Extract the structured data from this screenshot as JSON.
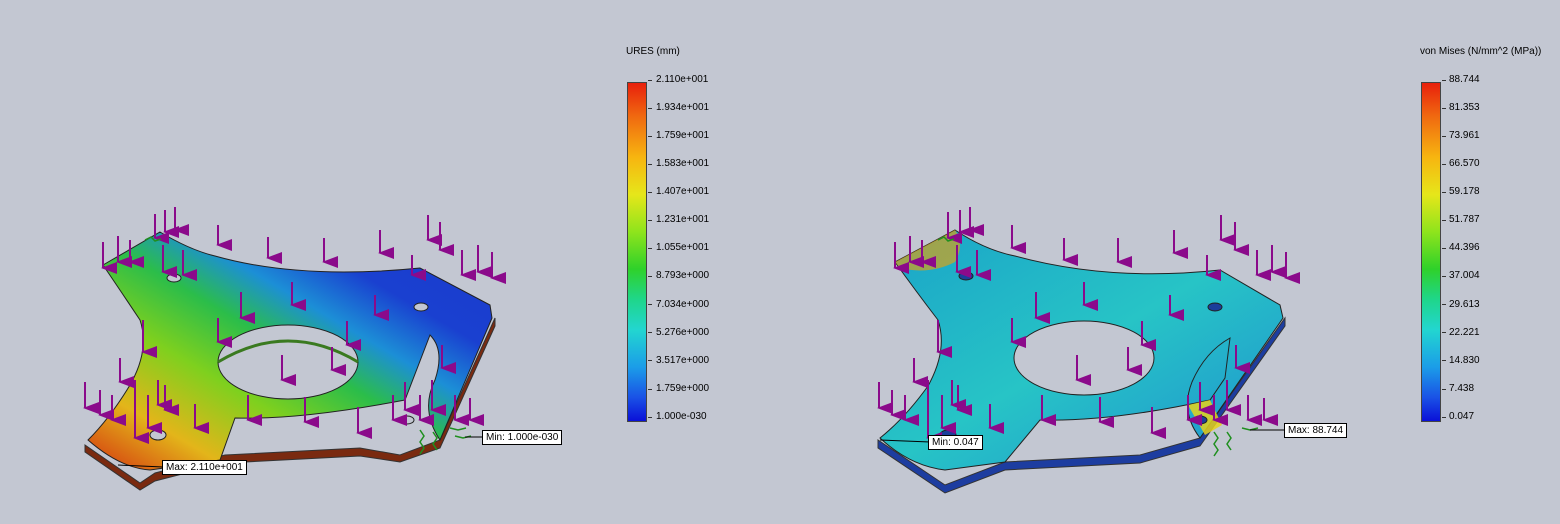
{
  "left_plot": {
    "legend": {
      "title": "URES (mm)",
      "ticks": [
        "2.110e+001",
        "1.934e+001",
        "1.759e+001",
        "1.583e+001",
        "1.407e+001",
        "1.231e+001",
        "1.055e+001",
        "8.793e+000",
        "7.034e+000",
        "5.276e+000",
        "3.517e+000",
        "1.759e+000",
        "1.000e-030"
      ]
    },
    "min_label": "Min: 1.000e-030",
    "max_label": "Max: 2.110e+001"
  },
  "right_plot": {
    "legend": {
      "title": "von Mises (N/mm^2 (MPa))",
      "ticks": [
        "88.744",
        "81.353",
        "73.961",
        "66.570",
        "59.178",
        "51.787",
        "44.396",
        "37.004",
        "29.613",
        "22.221",
        "14.830",
        "7.438",
        "0.047"
      ]
    },
    "min_label": "Min: 0.047",
    "max_label": "Max: 88.744"
  },
  "colors": {
    "background": "#c3c7d2",
    "load_arrow": "#8b0a8b",
    "fixture": "#1f8f1f"
  }
}
